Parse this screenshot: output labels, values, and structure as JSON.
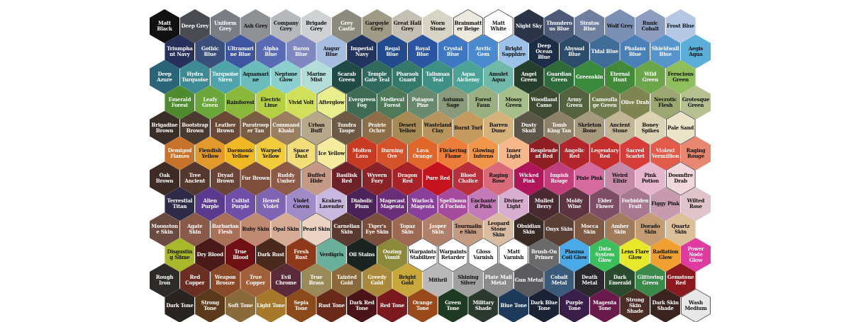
{
  "rows": [
    [
      {
        "name": "Matt Black",
        "color": "#111111"
      },
      {
        "name": "Deep Grey",
        "color": "#4a4b50"
      },
      {
        "name": "Uniform Grey",
        "color": "#7a7d84"
      },
      {
        "name": "Ash Grey",
        "color": "#8e9094"
      },
      {
        "name": "Company Grey",
        "color": "#b7b8bc"
      },
      {
        "name": "Brigade Grey",
        "color": "#d0d1d3"
      },
      {
        "name": "Grey Castle",
        "color": "#8c8a7c"
      },
      {
        "name": "Gargoyle Grey",
        "color": "#a09a86"
      },
      {
        "name": "Great Hall Grey",
        "color": "#c4c0b3"
      },
      {
        "name": "Worn Stone",
        "color": "#d8d4c6"
      },
      {
        "name": "Brainmatter Beige",
        "color": "#ece9df"
      },
      {
        "name": "Matt White",
        "color": "#ffffff"
      },
      {
        "name": "Night Sky",
        "color": "#2c3547"
      },
      {
        "name": "Thunderous Blue",
        "color": "#4d5a77"
      },
      {
        "name": "Stratos Blue",
        "color": "#6f7fa0"
      },
      {
        "name": "Wolf Grey",
        "color": "#7c8fb5"
      },
      {
        "name": "Runic Cobalt",
        "color": "#8d9dc0"
      },
      {
        "name": "Frost Blue",
        "color": "#b4c8e4"
      }
    ],
    [
      {
        "name": "Triumphant Navy",
        "color": "#27305a"
      },
      {
        "name": "Gothic Blue",
        "color": "#3b4f7c"
      },
      {
        "name": "Ultramarine Blue",
        "color": "#3d55a0"
      },
      {
        "name": "Alpha Blue",
        "color": "#5a6bb5"
      },
      {
        "name": "Baron Blue",
        "color": "#8088c0"
      },
      {
        "name": "Augur Blue",
        "color": "#a6bde0"
      },
      {
        "name": "Imperial Navy",
        "color": "#22335e"
      },
      {
        "name": "Regal Blue",
        "color": "#234a8c"
      },
      {
        "name": "Royal Blue",
        "color": "#2b55a3"
      },
      {
        "name": "Crystal Blue",
        "color": "#3f78c2"
      },
      {
        "name": "Arctic Gem",
        "color": "#4a8bd0"
      },
      {
        "name": "Bright Sapphire",
        "color": "#9bc3ea"
      },
      {
        "name": "Deep Ocean Blue",
        "color": "#1c2d45"
      },
      {
        "name": "Abyssal Blue",
        "color": "#2c4c6c"
      },
      {
        "name": "Tidal Blue",
        "color": "#3f6d97"
      },
      {
        "name": "Phalanx Blue",
        "color": "#4a7fb8"
      },
      {
        "name": "Shieldwall Blue",
        "color": "#5794cc"
      },
      {
        "name": "Aegis Aqua",
        "color": "#5aaed8"
      }
    ],
    [
      {
        "name": "Deep Azure",
        "color": "#2a6478"
      },
      {
        "name": "Hydra Turquoise",
        "color": "#3d8a95"
      },
      {
        "name": "Turquoise Siren",
        "color": "#4fa4ab"
      },
      {
        "name": "Aquamarine",
        "color": "#6bbcba"
      },
      {
        "name": "Neptune Glow",
        "color": "#8ccfcf"
      },
      {
        "name": "Marine Mist",
        "color": "#b2ddd8"
      },
      {
        "name": "Scarab Green",
        "color": "#1f4a45"
      },
      {
        "name": "Temple Gate Teal",
        "color": "#2f6a5e"
      },
      {
        "name": "Pharaoh Guard",
        "color": "#35796b"
      },
      {
        "name": "Talisman Teal",
        "color": "#3e8f84"
      },
      {
        "name": "Aqua Alchemy",
        "color": "#4aa396"
      },
      {
        "name": "Amulet Aqua",
        "color": "#70b9a8"
      },
      {
        "name": "Angel Green",
        "color": "#263e2c"
      },
      {
        "name": "Guardian Green",
        "color": "#2f6b3a"
      },
      {
        "name": "Greenskin",
        "color": "#3a8a3e"
      },
      {
        "name": "Eternal Hunt",
        "color": "#428a3a"
      },
      {
        "name": "Wild Green",
        "color": "#6ca64a"
      },
      {
        "name": "Ferocious Green",
        "color": "#8fbf5c"
      }
    ],
    [
      {
        "name": "Emerald Forest",
        "color": "#4e8a2e"
      },
      {
        "name": "Leafy Green",
        "color": "#6aa63a"
      },
      {
        "name": "Rainforest",
        "color": "#8ab83a"
      },
      {
        "name": "Electric Lime",
        "color": "#b5d043"
      },
      {
        "name": "Vivid Volt",
        "color": "#d0e05a"
      },
      {
        "name": "Afterglow",
        "color": "#e8ee8c"
      },
      {
        "name": "Evergreen Fog",
        "color": "#3f6b55"
      },
      {
        "name": "Medieval Forest",
        "color": "#4f7a58"
      },
      {
        "name": "Patagon Pine",
        "color": "#6a8a70"
      },
      {
        "name": "Autumn Sage",
        "color": "#8a9a7a"
      },
      {
        "name": "Forest Faun",
        "color": "#9ab080"
      },
      {
        "name": "Mossy Green",
        "color": "#a7bd8a"
      },
      {
        "name": "Woodland Camo",
        "color": "#3f4a32"
      },
      {
        "name": "Army Green",
        "color": "#55623e"
      },
      {
        "name": "Camouflage Green",
        "color": "#6f7a4c"
      },
      {
        "name": "Olive Drab",
        "color": "#7e8550"
      },
      {
        "name": "Necrotic Flesh",
        "color": "#9ca772"
      },
      {
        "name": "Grotesque Green",
        "color": "#b6c090"
      }
    ],
    [
      {
        "name": "Brigadine Brown",
        "color": "#3a2e28"
      },
      {
        "name": "Bootstrap Brown",
        "color": "#4a3a30"
      },
      {
        "name": "Leather Brown",
        "color": "#6a4a36"
      },
      {
        "name": "Paratrooper Tan",
        "color": "#7a5e44"
      },
      {
        "name": "Command Khaki",
        "color": "#9a7e60"
      },
      {
        "name": "Urban Buff",
        "color": "#b8a88a"
      },
      {
        "name": "Tundra Taupe",
        "color": "#6e5a44"
      },
      {
        "name": "Prairie Ochre",
        "color": "#8e6e48"
      },
      {
        "name": "Desert Yellow",
        "color": "#a88a55"
      },
      {
        "name": "Wasteland Clay",
        "color": "#b8945e"
      },
      {
        "name": "Burnt Turf",
        "color": "#c49a5e"
      },
      {
        "name": "Barren Dune",
        "color": "#d4b27a"
      },
      {
        "name": "Dusty Skull",
        "color": "#5e5648"
      },
      {
        "name": "Tomb King Tan",
        "color": "#8e8068"
      },
      {
        "name": "Skeleton Bone",
        "color": "#a89a7e"
      },
      {
        "name": "Ancient Stone",
        "color": "#c2b598"
      },
      {
        "name": "Boney Spikes",
        "color": "#dcd2b4"
      },
      {
        "name": "Pale Sand",
        "color": "#ece4c8"
      }
    ],
    [
      {
        "name": "Demigod Flames",
        "color": "#c8732a"
      },
      {
        "name": "Fiendish Yellow",
        "color": "#e29a2a"
      },
      {
        "name": "Daemonic Yellow",
        "color": "#f0b823"
      },
      {
        "name": "Warped Yellow",
        "color": "#f2cc3a"
      },
      {
        "name": "Space Dust",
        "color": "#f4de7a"
      },
      {
        "name": "Ice Yellow",
        "color": "#f7ec9e"
      },
      {
        "name": "Molten Lava",
        "color": "#c83a22"
      },
      {
        "name": "Burning Ore",
        "color": "#d4522a"
      },
      {
        "name": "Lava Orange",
        "color": "#e0662a"
      },
      {
        "name": "Flickering Flame",
        "color": "#ec7e3a"
      },
      {
        "name": "Glowing Inferno",
        "color": "#f2964a"
      },
      {
        "name": "Inner Light",
        "color": "#f6b88a"
      },
      {
        "name": "Resplendent Red",
        "color": "#8e1e22"
      },
      {
        "name": "Angelic Red",
        "color": "#b0262a"
      },
      {
        "name": "Legendary Red",
        "color": "#c42e2c"
      },
      {
        "name": "Sacred Scarlet",
        "color": "#d63c38"
      },
      {
        "name": "Violent Vermillion",
        "color": "#e25a4a"
      },
      {
        "name": "Raging Rouge",
        "color": "#e88670"
      }
    ],
    [
      {
        "name": "Oak Brown",
        "color": "#3e2b26"
      },
      {
        "name": "Tree Ancient",
        "color": "#54382e"
      },
      {
        "name": "Dryad Brown",
        "color": "#6a4436"
      },
      {
        "name": "Fur Brown",
        "color": "#7e4e3a"
      },
      {
        "name": "Ruddy Umber",
        "color": "#8e5a48"
      },
      {
        "name": "Buffed Hide",
        "color": "#c49a86"
      },
      {
        "name": "Basilisk Red",
        "color": "#6e2228"
      },
      {
        "name": "Wyvern Fury",
        "color": "#8a2428"
      },
      {
        "name": "Dragon Red",
        "color": "#a82228"
      },
      {
        "name": "Pure Red",
        "color": "#c4121e"
      },
      {
        "name": "Blood Chalice",
        "color": "#b82e3a"
      },
      {
        "name": "Raging Rose",
        "color": "#d86a7a"
      },
      {
        "name": "Wicked Pink",
        "color": "#b0145a"
      },
      {
        "name": "Impish Rouge",
        "color": "#c23e7a"
      },
      {
        "name": "Pixie Pink",
        "color": "#d46a9e"
      },
      {
        "name": "Weird Elixir",
        "color": "#c48aa8"
      },
      {
        "name": "Pink Potion",
        "color": "#e6b6cc"
      },
      {
        "name": "Doomfire Drab",
        "color": "#f0d8dc"
      }
    ],
    [
      {
        "name": "Terrestial Titan",
        "color": "#2e2b48"
      },
      {
        "name": "Alien Purple",
        "color": "#5a3a8e"
      },
      {
        "name": "Cultist Purple",
        "color": "#6e4ea6"
      },
      {
        "name": "Hexed Violet",
        "color": "#7e64b2"
      },
      {
        "name": "Violet Coven",
        "color": "#a08ac8"
      },
      {
        "name": "Kraken Lavender",
        "color": "#c8b8e0"
      },
      {
        "name": "Diabolic Plum",
        "color": "#4a2458"
      },
      {
        "name": "Magecast Magenta",
        "color": "#6a2e78"
      },
      {
        "name": "Warlock Magenta",
        "color": "#88409a"
      },
      {
        "name": "Spellbound Fuchsia",
        "color": "#a64a9e"
      },
      {
        "name": "Enchanted Pink",
        "color": "#c27ab8"
      },
      {
        "name": "Diviner Light",
        "color": "#d8aed0"
      },
      {
        "name": "Mulled Berry",
        "color": "#4a2a32"
      },
      {
        "name": "Moldy Wine",
        "color": "#5e3442"
      },
      {
        "name": "Elder Flower",
        "color": "#7e4e66"
      },
      {
        "name": "Forbidden Fruit",
        "color": "#a87890"
      },
      {
        "name": "Figgy Pink",
        "color": "#c89aae"
      },
      {
        "name": "Wilted Rose",
        "color": "#e0c4cc"
      }
    ],
    [
      {
        "name": "Moonstone Skin",
        "color": "#6b4a40"
      },
      {
        "name": "Agate Skin",
        "color": "#8a5a48"
      },
      {
        "name": "Barbarian Flesh",
        "color": "#a87058"
      },
      {
        "name": "Ruby Skin",
        "color": "#c08a72"
      },
      {
        "name": "Opal Skin",
        "color": "#d6ac96"
      },
      {
        "name": "Pearl Skin",
        "color": "#ecd4c4"
      },
      {
        "name": "Carnelian Skin",
        "color": "#5a3a30"
      },
      {
        "name": "Tiger's Eye Skin",
        "color": "#7a4e3a"
      },
      {
        "name": "Topaz Skin",
        "color": "#9c6a52"
      },
      {
        "name": "Jasper Skin",
        "color": "#b08068"
      },
      {
        "name": "Tourmaline Skin",
        "color": "#c49a80"
      },
      {
        "name": "Leopard Stone Skin",
        "color": "#dabca2"
      },
      {
        "name": "Obsidian Skin",
        "color": "#3a2a24"
      },
      {
        "name": "Onyx Skin",
        "color": "#5a4034"
      },
      {
        "name": "Mocca Skin",
        "color": "#7e5a44"
      },
      {
        "name": "Amber Skin",
        "color": "#a07c5c"
      },
      {
        "name": "Dorado Skin",
        "color": "#c49c74"
      },
      {
        "name": "Quartz Skin",
        "color": "#dcc09a"
      }
    ],
    [
      {
        "name": "Disgusting Slime",
        "color": "#a8b82a"
      },
      {
        "name": "Dry Blood",
        "color": "#4a1a18"
      },
      {
        "name": "True Blood",
        "color": "#6e1014"
      },
      {
        "name": "Dark Rust",
        "color": "#4a2a1c"
      },
      {
        "name": "Fresh Rust",
        "color": "#8e3a1a"
      },
      {
        "name": "Verdigris",
        "color": "#6ab09a"
      },
      {
        "name": "Oil Stains",
        "color": "#1a2420"
      },
      {
        "name": "Oozing Vomit",
        "color": "#8a8a3a"
      },
      {
        "name": "Warpaints Stabilizer",
        "color": "#ffffff"
      },
      {
        "name": "Warpaints Retarder",
        "color": "#ffffff"
      },
      {
        "name": "Gloss Varnish",
        "color": "#ffffff"
      },
      {
        "name": "Matt Varnish",
        "color": "#ffffff"
      },
      {
        "name": "Brush-On Primer",
        "color": "#6a6a6a"
      },
      {
        "name": "Plasma Coil Glow",
        "color": "#4aaae8"
      },
      {
        "name": "Data System Glow",
        "color": "#3abf5a"
      },
      {
        "name": "Lens Flare Glow",
        "color": "#e8e82a"
      },
      {
        "name": "Radiation Glow",
        "color": "#f0a030"
      },
      {
        "name": "Power Node Glow",
        "color": "#e03aa0"
      }
    ],
    [
      {
        "name": "Rough Iron",
        "color": "#2e2a28"
      },
      {
        "name": "Red Copper",
        "color": "#6a2e22"
      },
      {
        "name": "Weapon Bronze",
        "color": "#8a4a28"
      },
      {
        "name": "True Copper",
        "color": "#a0603a"
      },
      {
        "name": "Evil Chrome",
        "color": "#5a2a38"
      },
      {
        "name": "True Brass",
        "color": "#9a8a5a"
      },
      {
        "name": "Tainted Gold",
        "color": "#8a6a3a"
      },
      {
        "name": "Greedy Gold",
        "color": "#a88a3a"
      },
      {
        "name": "Bright Gold",
        "color": "#c8a83a"
      },
      {
        "name": "Mithril",
        "color": "#b8b8b8"
      },
      {
        "name": "Shining Silver",
        "color": "#a0a0a0"
      },
      {
        "name": "Plate Mail Metal",
        "color": "#8a8a8a"
      },
      {
        "name": "Gun Metal",
        "color": "#5a5a5e"
      },
      {
        "name": "Cobalt Metal",
        "color": "#3a5a7a"
      },
      {
        "name": "Death Metal",
        "color": "#2a2a2e"
      },
      {
        "name": "Dark Emerald",
        "color": "#2a4a2e"
      },
      {
        "name": "Glittering Green",
        "color": "#3a8a4a"
      },
      {
        "name": "Gemstone Red",
        "color": "#8a1a1e"
      }
    ],
    [
      {
        "name": "Dark Tone",
        "color": "#2a2420"
      },
      {
        "name": "Strong Tone",
        "color": "#5a3a1a"
      },
      {
        "name": "Soft Tone",
        "color": "#8a6a3a"
      },
      {
        "name": "Light Tone",
        "color": "#a8782a"
      },
      {
        "name": "Sepia Tone",
        "color": "#8a4a1a"
      },
      {
        "name": "Rust Tone",
        "color": "#6a2a1a"
      },
      {
        "name": "Dark Red Tone",
        "color": "#4a1418"
      },
      {
        "name": "Red Tone",
        "color": "#7a1a1e"
      },
      {
        "name": "Orange Tone",
        "color": "#9a4a1a"
      },
      {
        "name": "Green Tone",
        "color": "#1e3a22"
      },
      {
        "name": "Military Shade",
        "color": "#2a3a2e"
      },
      {
        "name": "Blue Tone",
        "color": "#1e3a5a"
      },
      {
        "name": "Dark Blue Tone",
        "color": "#1a2236"
      },
      {
        "name": "Purple Tone",
        "color": "#3a1e4a"
      },
      {
        "name": "Magenta Tone",
        "color": "#6a1a4a"
      },
      {
        "name": "Strong Skin Shade",
        "color": "#4a2e26"
      },
      {
        "name": "Dark Skin Shade",
        "color": "#3a2420"
      },
      {
        "name": "Wash Medium",
        "color": "#e8e8e8"
      }
    ]
  ]
}
